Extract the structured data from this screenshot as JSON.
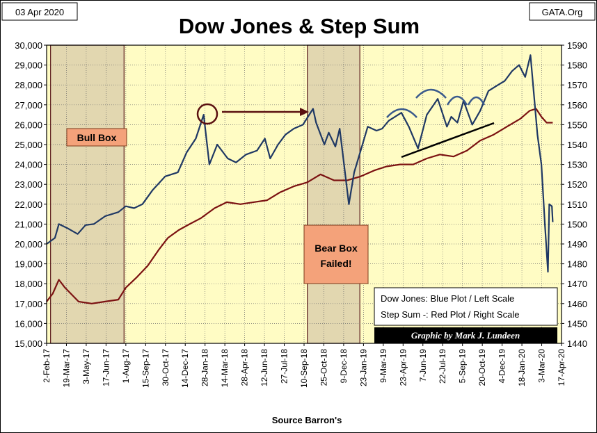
{
  "date_label": "03 Apr 2020",
  "site_label": "GATA.Org",
  "chart_data": {
    "type": "line",
    "title": "Dow Jones & Step Sum",
    "xlabel": "Source Barron's",
    "ylabel_left": "",
    "ylabel_right": "",
    "ylim_left": [
      15000,
      30000
    ],
    "ylim_right": [
      1440,
      1590
    ],
    "left_ticks": [
      "15,000",
      "16,000",
      "17,000",
      "18,000",
      "19,000",
      "20,000",
      "21,000",
      "22,000",
      "23,000",
      "24,000",
      "25,000",
      "26,000",
      "27,000",
      "28,000",
      "29,000",
      "30,000"
    ],
    "right_ticks": [
      "1440",
      "1450",
      "1460",
      "1470",
      "1480",
      "1490",
      "1500",
      "1510",
      "1520",
      "1530",
      "1540",
      "1550",
      "1560",
      "1570",
      "1580",
      "1590"
    ],
    "x_ticks": [
      "2-Feb-17",
      "19-Mar-17",
      "3-May-17",
      "17-Jun-17",
      "1-Aug-17",
      "15-Sep-17",
      "30-Oct-17",
      "14-Dec-17",
      "28-Jan-18",
      "14-Mar-18",
      "28-Apr-18",
      "12-Jun-18",
      "27-Jul-18",
      "10-Sep-18",
      "25-Oct-18",
      "9-Dec-18",
      "23-Jan-19",
      "9-Mar-19",
      "23-Apr-19",
      "7-Jun-19",
      "22-Jul-19",
      "5-Sep-19",
      "20-Oct-19",
      "4-Dec-19",
      "18-Jan-20",
      "3-Mar-20",
      "17-Apr-20"
    ],
    "grid": true,
    "series": [
      {
        "name": "Dow Jones",
        "color": "#1f3864",
        "axis": "left",
        "x": [
          "2017-02-01",
          "2017-02-20",
          "2017-03-01",
          "2017-03-20",
          "2017-04-13",
          "2017-05-01",
          "2017-05-20",
          "2017-06-15",
          "2017-07-15",
          "2017-08-01",
          "2017-08-20",
          "2017-09-08",
          "2017-10-01",
          "2017-10-30",
          "2017-11-28",
          "2017-12-18",
          "2018-01-08",
          "2018-01-26",
          "2018-02-08",
          "2018-02-26",
          "2018-03-22",
          "2018-04-10",
          "2018-05-03",
          "2018-05-28",
          "2018-06-15",
          "2018-06-27",
          "2018-07-15",
          "2018-08-01",
          "2018-08-20",
          "2018-09-10",
          "2018-10-03",
          "2018-10-10",
          "2018-10-29",
          "2018-11-08",
          "2018-11-23",
          "2018-12-03",
          "2018-12-24",
          "2019-01-05",
          "2019-01-20",
          "2019-02-05",
          "2019-02-25",
          "2019-03-10",
          "2019-03-25",
          "2019-04-23",
          "2019-05-10",
          "2019-05-31",
          "2019-06-20",
          "2019-07-15",
          "2019-08-05",
          "2019-08-15",
          "2019-08-29",
          "2019-09-12",
          "2019-10-02",
          "2019-10-20",
          "2019-11-08",
          "2019-11-30",
          "2019-12-15",
          "2020-01-01",
          "2020-01-17",
          "2020-01-31",
          "2020-02-12",
          "2020-02-28",
          "2020-03-08",
          "2020-03-16",
          "2020-03-23",
          "2020-03-26",
          "2020-04-01",
          "2020-04-03"
        ],
        "values": [
          20000,
          20300,
          21000,
          20800,
          20500,
          20950,
          21000,
          21400,
          21600,
          21900,
          21800,
          22000,
          22700,
          23400,
          23600,
          24600,
          25300,
          26500,
          24000,
          25000,
          24300,
          24100,
          24500,
          24700,
          25300,
          24300,
          25000,
          25500,
          25800,
          26000,
          26800,
          26100,
          25000,
          25600,
          24900,
          25800,
          22000,
          23600,
          24700,
          25900,
          25700,
          25800,
          26200,
          26600,
          25900,
          24800,
          26500,
          27300,
          25900,
          26400,
          26100,
          27200,
          26000,
          26700,
          27700,
          28000,
          28200,
          28700,
          29000,
          28400,
          29500,
          25500,
          24000,
          21000,
          18600,
          22000,
          21900,
          21100
        ]
      },
      {
        "name": "Step Sum",
        "color": "#7b1111",
        "axis": "right",
        "x": [
          "2017-02-01",
          "2017-02-15",
          "2017-03-01",
          "2017-03-15",
          "2017-04-15",
          "2017-05-15",
          "2017-06-15",
          "2017-07-15",
          "2017-08-01",
          "2017-08-25",
          "2017-09-20",
          "2017-10-15",
          "2017-11-05",
          "2017-11-30",
          "2017-12-25",
          "2018-01-20",
          "2018-02-20",
          "2018-03-20",
          "2018-04-20",
          "2018-05-20",
          "2018-06-20",
          "2018-07-20",
          "2018-08-20",
          "2018-09-20",
          "2018-10-20",
          "2018-11-20",
          "2018-12-20",
          "2019-01-20",
          "2019-02-20",
          "2019-03-20",
          "2019-04-20",
          "2019-05-20",
          "2019-06-20",
          "2019-07-20",
          "2019-08-20",
          "2019-09-20",
          "2019-10-20",
          "2019-11-20",
          "2019-12-20",
          "2020-01-20",
          "2020-02-10",
          "2020-02-25",
          "2020-03-08",
          "2020-03-20",
          "2020-04-03"
        ],
        "values": [
          1461,
          1465,
          1472,
          1468,
          1461,
          1460,
          1461,
          1462,
          1468,
          1473,
          1479,
          1487,
          1493,
          1497,
          1500,
          1503,
          1508,
          1511,
          1510,
          1511,
          1512,
          1516,
          1519,
          1521,
          1525,
          1522,
          1522,
          1524,
          1527,
          1529,
          1530,
          1530,
          1533,
          1535,
          1534,
          1537,
          1542,
          1545,
          1549,
          1553,
          1557,
          1558,
          1554,
          1551,
          1551
        ]
      }
    ],
    "shaded_regions": [
      {
        "label": "Bull Box",
        "from": "2017-02-10",
        "to": "2017-07-28"
      },
      {
        "label": "Bear Box Failed!",
        "from": "2018-09-20",
        "to": "2019-01-18"
      }
    ],
    "annotations": {
      "bull_box": "Bull Box",
      "bear_box": "Bear Box Failed!",
      "legend_line1": "Dow Jones: Blue Plot / Left Scale",
      "legend_line2": "Step Sum -: Red Plot / Right Scale",
      "credit": "Graphic by Mark J. Lundeen"
    },
    "colors": {
      "plot_background": "#fffcc4",
      "box_fill": "#e2d7b0",
      "label_box_fill": "#f4a27a"
    }
  }
}
